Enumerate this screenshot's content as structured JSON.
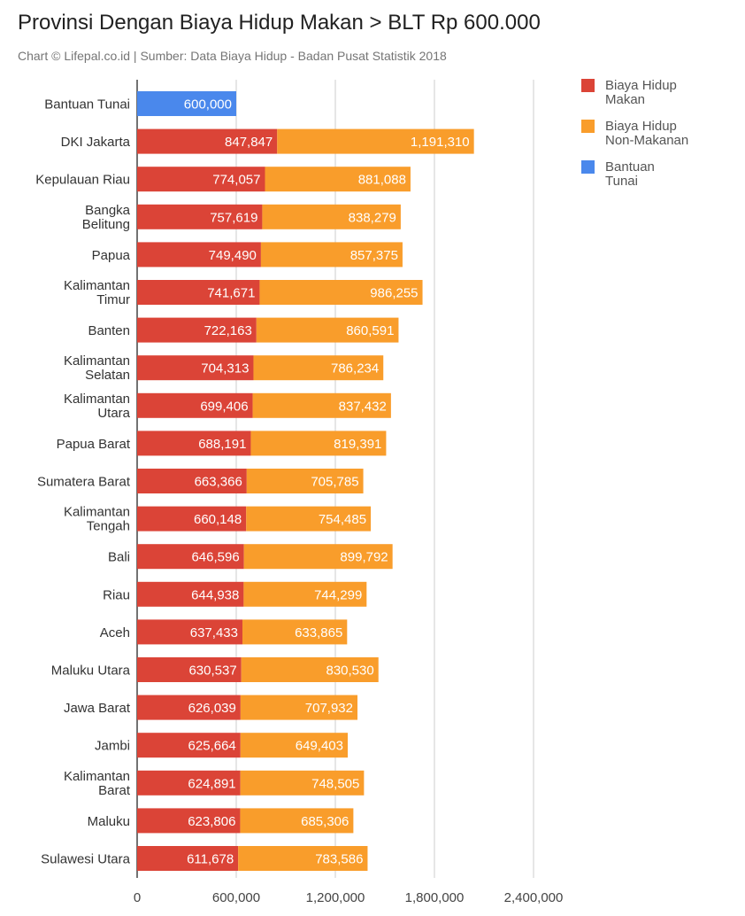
{
  "colors": {
    "makan": "#db4437",
    "nonmakan": "#f99d2b",
    "bantuan": "#4a88ec",
    "grid": "#cccccc",
    "axis": "#444444"
  },
  "chart_data": {
    "type": "bar",
    "orientation": "horizontal",
    "stacked": true,
    "title": "Provinsi Dengan Biaya Hidup Makan > BLT Rp 600.000",
    "subtitle": "Chart © Lifepal.co.id | Sumber: Data Biaya Hidup - Badan Pusat Statistik 2018",
    "xlabel": "",
    "ylabel": "",
    "xlim": [
      0,
      2400000
    ],
    "xticks": [
      0,
      600000,
      1200000,
      1800000,
      2400000
    ],
    "xtick_labels": [
      "0",
      "600,000",
      "1,200,000",
      "1,800,000",
      "2,400,000"
    ],
    "legend_position": "right",
    "categories": [
      {
        "label": [
          "Bantuan Tunai"
        ]
      },
      {
        "label": [
          "DKI Jakarta"
        ]
      },
      {
        "label": [
          "Kepulauan Riau"
        ]
      },
      {
        "label": [
          "Bangka",
          "Belitung"
        ]
      },
      {
        "label": [
          "Papua"
        ]
      },
      {
        "label": [
          "Kalimantan",
          "Timur"
        ]
      },
      {
        "label": [
          "Banten"
        ]
      },
      {
        "label": [
          "Kalimantan",
          "Selatan"
        ]
      },
      {
        "label": [
          "Kalimantan",
          "Utara"
        ]
      },
      {
        "label": [
          "Papua Barat"
        ]
      },
      {
        "label": [
          "Sumatera Barat"
        ]
      },
      {
        "label": [
          "Kalimantan",
          "Tengah"
        ]
      },
      {
        "label": [
          "Bali"
        ]
      },
      {
        "label": [
          "Riau"
        ]
      },
      {
        "label": [
          "Aceh"
        ]
      },
      {
        "label": [
          "Maluku Utara"
        ]
      },
      {
        "label": [
          "Jawa Barat"
        ]
      },
      {
        "label": [
          "Jambi"
        ]
      },
      {
        "label": [
          "Kalimantan",
          "Barat"
        ]
      },
      {
        "label": [
          "Maluku"
        ]
      },
      {
        "label": [
          "Sulawesi Utara"
        ]
      }
    ],
    "series": [
      {
        "name": "Biaya Hidup Makan",
        "legend_lines": [
          "Biaya Hidup",
          "Makan"
        ],
        "color_key": "makan",
        "values": [
          null,
          847847,
          774057,
          757619,
          749490,
          741671,
          722163,
          704313,
          699406,
          688191,
          663366,
          660148,
          646596,
          644938,
          637433,
          630537,
          626039,
          625664,
          624891,
          623806,
          611678
        ],
        "labels": [
          null,
          "847,847",
          "774,057",
          "757,619",
          "749,490",
          "741,671",
          "722,163",
          "704,313",
          "699,406",
          "688,191",
          "663,366",
          "660,148",
          "646,596",
          "644,938",
          "637,433",
          "630,537",
          "626,039",
          "625,664",
          "624,891",
          "623,806",
          "611,678"
        ]
      },
      {
        "name": "Biaya Hidup Non-Makanan",
        "legend_lines": [
          "Biaya Hidup",
          "Non-Makanan"
        ],
        "color_key": "nonmakan",
        "values": [
          null,
          1191310,
          881088,
          838279,
          857375,
          986255,
          860591,
          786234,
          837432,
          819391,
          705785,
          754485,
          899792,
          744299,
          633865,
          830530,
          707932,
          649403,
          748505,
          685306,
          783586
        ],
        "labels": [
          null,
          "1,191,310",
          "881,088",
          "838,279",
          "857,375",
          "986,255",
          "860,591",
          "786,234",
          "837,432",
          "819,391",
          "705,785",
          "754,485",
          "899,792",
          "744,299",
          "633,865",
          "830,530",
          "707,932",
          "649,403",
          "748,505",
          "685,306",
          "783,586"
        ]
      },
      {
        "name": "Bantuan Tunai",
        "legend_lines": [
          "Bantuan",
          "Tunai"
        ],
        "color_key": "bantuan",
        "values": [
          600000,
          null,
          null,
          null,
          null,
          null,
          null,
          null,
          null,
          null,
          null,
          null,
          null,
          null,
          null,
          null,
          null,
          null,
          null,
          null,
          null
        ],
        "labels": [
          "600,000",
          null,
          null,
          null,
          null,
          null,
          null,
          null,
          null,
          null,
          null,
          null,
          null,
          null,
          null,
          null,
          null,
          null,
          null,
          null,
          null
        ]
      }
    ]
  }
}
